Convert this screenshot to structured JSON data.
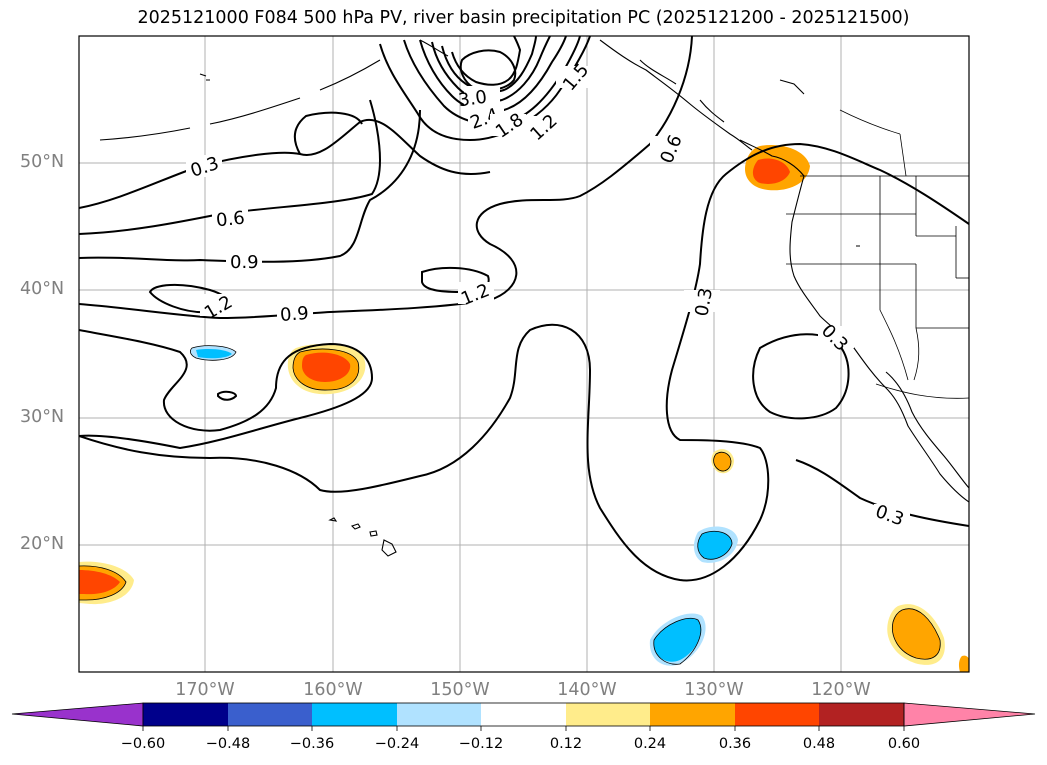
{
  "title": "2025121000 F084 500 hPa PV, river basin precipitation PC (2025121200 - 2025121500)",
  "latitude_labels": [
    "50°N",
    "40°N",
    "30°N",
    "20°N"
  ],
  "longitude_labels": [
    "170°W",
    "160°W",
    "150°W",
    "140°W",
    "130°W",
    "120°W"
  ],
  "contour_labels": [
    "0.3",
    "0.6",
    "0.9",
    "1.2",
    "0.9",
    "1.2",
    "3.0",
    "2.4",
    "1.8",
    "1.2",
    "1.5",
    "0.6",
    "0.3",
    "0.3",
    "0.3"
  ],
  "colorbar": {
    "tick_labels": [
      "−0.60",
      "−0.48",
      "−0.36",
      "−0.24",
      "−0.12",
      "0.12",
      "0.24",
      "0.36",
      "0.48",
      "0.60"
    ],
    "colors": [
      "#9932cc",
      "#00008b",
      "#3a5fcd",
      "#00bfff",
      "#b0e2ff",
      "#ffffff",
      "#ffec8b",
      "#ffa500",
      "#ff4500",
      "#b22222",
      "#ff83a8"
    ]
  },
  "map_colors": {
    "orange": "#ffa500",
    "red_orange": "#ff4500",
    "light_yellow": "#ffec8b",
    "sky_blue": "#00bfff",
    "pale_blue": "#b0e2ff"
  }
}
